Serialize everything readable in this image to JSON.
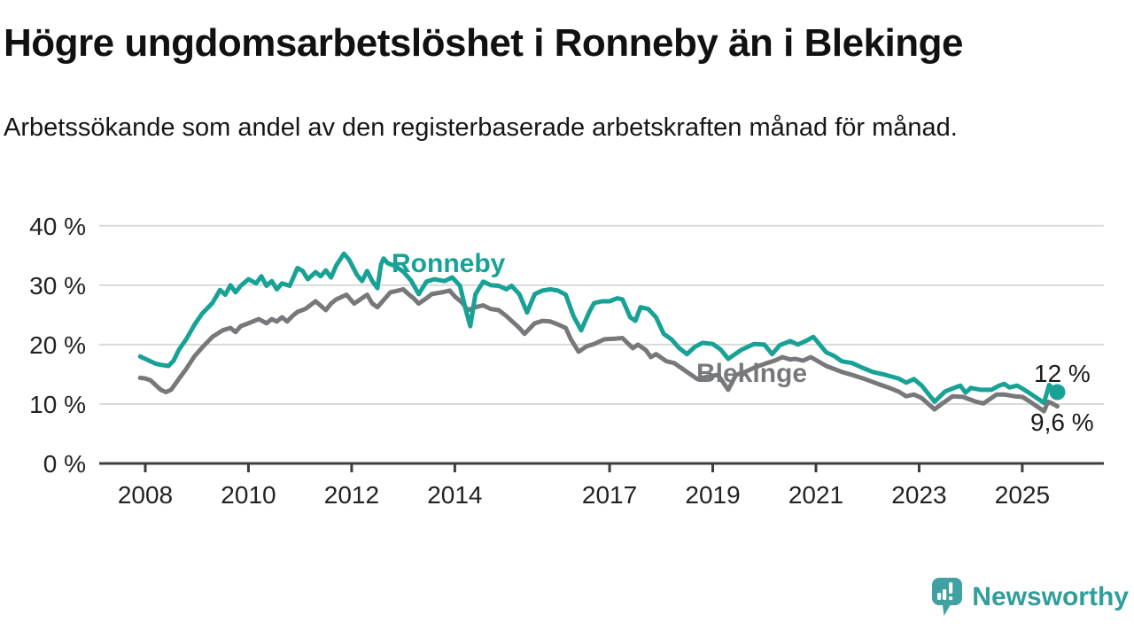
{
  "chart_data": {
    "type": "line",
    "title": "Högre ungdomsarbetslöshet i Ronneby än i Blekinge",
    "subtitle": "Arbetssökande som andel av den registerbaserade arbetskraften månad för månad.",
    "x_unit": "year (monthly series)",
    "xlim": [
      2007.1,
      2026.6
    ],
    "ylim": [
      0,
      40
    ],
    "grid": "horizontal",
    "legend_position": "inline line labels",
    "x_ticks": [
      2008,
      2010,
      2012,
      2014,
      2017,
      2019,
      2021,
      2023,
      2025
    ],
    "y_ticks": [
      0,
      10,
      20,
      30,
      40
    ],
    "y_tick_suffix": " %",
    "axis_color": "#3d3d3d",
    "gridline_color": "#dadada",
    "end_dot_series": "Ronneby",
    "series": [
      {
        "name": "Ronneby",
        "label_text": "Ronneby",
        "end_label": "12 %",
        "end_value": 12.0,
        "color": "#17a295",
        "points": [
          [
            2007.9,
            18.0
          ],
          [
            2008.0,
            17.6
          ],
          [
            2008.1,
            17.2
          ],
          [
            2008.2,
            16.8
          ],
          [
            2008.3,
            16.6
          ],
          [
            2008.45,
            16.4
          ],
          [
            2008.55,
            17.3
          ],
          [
            2008.65,
            19.1
          ],
          [
            2008.8,
            21.0
          ],
          [
            2008.95,
            23.3
          ],
          [
            2009.1,
            25.2
          ],
          [
            2009.3,
            27.0
          ],
          [
            2009.45,
            29.2
          ],
          [
            2009.55,
            28.4
          ],
          [
            2009.65,
            30.0
          ],
          [
            2009.75,
            28.8
          ],
          [
            2009.85,
            29.9
          ],
          [
            2010.0,
            31.0
          ],
          [
            2010.15,
            30.3
          ],
          [
            2010.25,
            31.5
          ],
          [
            2010.35,
            29.9
          ],
          [
            2010.45,
            30.7
          ],
          [
            2010.55,
            29.3
          ],
          [
            2010.65,
            30.3
          ],
          [
            2010.8,
            29.9
          ],
          [
            2010.95,
            32.9
          ],
          [
            2011.05,
            32.4
          ],
          [
            2011.15,
            31.0
          ],
          [
            2011.3,
            32.2
          ],
          [
            2011.4,
            31.5
          ],
          [
            2011.5,
            32.5
          ],
          [
            2011.6,
            31.3
          ],
          [
            2011.7,
            33.3
          ],
          [
            2011.85,
            35.3
          ],
          [
            2011.95,
            34.3
          ],
          [
            2012.1,
            31.8
          ],
          [
            2012.2,
            30.7
          ],
          [
            2012.3,
            32.4
          ],
          [
            2012.4,
            30.7
          ],
          [
            2012.5,
            29.5
          ],
          [
            2012.57,
            33.5
          ],
          [
            2012.62,
            34.5
          ],
          [
            2012.7,
            33.7
          ],
          [
            2012.85,
            33.2
          ],
          [
            2013.0,
            32.3
          ],
          [
            2013.15,
            30.8
          ],
          [
            2013.3,
            28.5
          ],
          [
            2013.45,
            30.6
          ],
          [
            2013.6,
            31.0
          ],
          [
            2013.8,
            30.7
          ],
          [
            2013.95,
            31.3
          ],
          [
            2014.1,
            29.9
          ],
          [
            2014.2,
            26.3
          ],
          [
            2014.3,
            23.1
          ],
          [
            2014.4,
            28.5
          ],
          [
            2014.55,
            30.6
          ],
          [
            2014.7,
            30.0
          ],
          [
            2014.85,
            29.9
          ],
          [
            2015.0,
            29.3
          ],
          [
            2015.1,
            29.9
          ],
          [
            2015.25,
            28.5
          ],
          [
            2015.4,
            25.4
          ],
          [
            2015.55,
            28.5
          ],
          [
            2015.7,
            29.1
          ],
          [
            2015.85,
            29.3
          ],
          [
            2016.0,
            29.1
          ],
          [
            2016.15,
            28.4
          ],
          [
            2016.3,
            24.8
          ],
          [
            2016.45,
            22.4
          ],
          [
            2016.6,
            25.4
          ],
          [
            2016.7,
            27.0
          ],
          [
            2016.85,
            27.3
          ],
          [
            2017.0,
            27.3
          ],
          [
            2017.15,
            27.8
          ],
          [
            2017.25,
            27.6
          ],
          [
            2017.4,
            24.6
          ],
          [
            2017.5,
            24.0
          ],
          [
            2017.6,
            26.3
          ],
          [
            2017.75,
            26.0
          ],
          [
            2017.9,
            24.6
          ],
          [
            2018.05,
            21.8
          ],
          [
            2018.2,
            20.9
          ],
          [
            2018.35,
            19.4
          ],
          [
            2018.5,
            18.4
          ],
          [
            2018.65,
            19.6
          ],
          [
            2018.8,
            20.3
          ],
          [
            2019.0,
            20.1
          ],
          [
            2019.15,
            19.2
          ],
          [
            2019.3,
            17.6
          ],
          [
            2019.55,
            19.1
          ],
          [
            2019.8,
            20.1
          ],
          [
            2020.0,
            20.0
          ],
          [
            2020.15,
            18.4
          ],
          [
            2020.3,
            19.9
          ],
          [
            2020.5,
            20.6
          ],
          [
            2020.65,
            20.0
          ],
          [
            2020.8,
            20.6
          ],
          [
            2020.95,
            21.3
          ],
          [
            2021.2,
            18.7
          ],
          [
            2021.35,
            18.1
          ],
          [
            2021.5,
            17.2
          ],
          [
            2021.7,
            16.9
          ],
          [
            2021.9,
            16.1
          ],
          [
            2022.1,
            15.4
          ],
          [
            2022.35,
            14.9
          ],
          [
            2022.6,
            14.3
          ],
          [
            2022.75,
            13.6
          ],
          [
            2022.9,
            14.2
          ],
          [
            2023.05,
            13.1
          ],
          [
            2023.3,
            10.4
          ],
          [
            2023.5,
            12.1
          ],
          [
            2023.7,
            12.8
          ],
          [
            2023.8,
            13.1
          ],
          [
            2023.9,
            11.9
          ],
          [
            2024.0,
            12.7
          ],
          [
            2024.2,
            12.4
          ],
          [
            2024.4,
            12.4
          ],
          [
            2024.55,
            13.1
          ],
          [
            2024.65,
            13.4
          ],
          [
            2024.75,
            12.8
          ],
          [
            2024.9,
            13.1
          ],
          [
            2025.0,
            12.6
          ],
          [
            2025.15,
            11.8
          ],
          [
            2025.3,
            10.9
          ],
          [
            2025.42,
            10.2
          ],
          [
            2025.52,
            13.2
          ],
          [
            2025.6,
            12.6
          ],
          [
            2025.68,
            12.0
          ]
        ]
      },
      {
        "name": "Blekinge",
        "label_text": "Blekinge",
        "end_label": "9,6 %",
        "end_value": 9.6,
        "color": "#77787c",
        "points": [
          [
            2007.9,
            14.4
          ],
          [
            2008.0,
            14.3
          ],
          [
            2008.1,
            14.0
          ],
          [
            2008.2,
            13.2
          ],
          [
            2008.3,
            12.4
          ],
          [
            2008.4,
            12.0
          ],
          [
            2008.5,
            12.4
          ],
          [
            2008.65,
            14.2
          ],
          [
            2008.8,
            16.0
          ],
          [
            2008.95,
            18.0
          ],
          [
            2009.1,
            19.5
          ],
          [
            2009.3,
            21.3
          ],
          [
            2009.5,
            22.4
          ],
          [
            2009.65,
            22.8
          ],
          [
            2009.75,
            22.1
          ],
          [
            2009.85,
            23.1
          ],
          [
            2010.0,
            23.6
          ],
          [
            2010.2,
            24.3
          ],
          [
            2010.35,
            23.6
          ],
          [
            2010.45,
            24.3
          ],
          [
            2010.55,
            23.9
          ],
          [
            2010.65,
            24.6
          ],
          [
            2010.75,
            23.9
          ],
          [
            2010.85,
            24.8
          ],
          [
            2010.95,
            25.5
          ],
          [
            2011.1,
            26.0
          ],
          [
            2011.3,
            27.3
          ],
          [
            2011.5,
            25.8
          ],
          [
            2011.6,
            26.9
          ],
          [
            2011.7,
            27.6
          ],
          [
            2011.9,
            28.4
          ],
          [
            2012.05,
            26.9
          ],
          [
            2012.2,
            27.8
          ],
          [
            2012.3,
            28.4
          ],
          [
            2012.4,
            26.9
          ],
          [
            2012.5,
            26.3
          ],
          [
            2012.65,
            27.8
          ],
          [
            2012.75,
            28.8
          ],
          [
            2012.9,
            29.1
          ],
          [
            2013.0,
            29.3
          ],
          [
            2013.1,
            28.5
          ],
          [
            2013.2,
            27.8
          ],
          [
            2013.3,
            26.9
          ],
          [
            2013.45,
            27.8
          ],
          [
            2013.55,
            28.5
          ],
          [
            2013.75,
            28.8
          ],
          [
            2013.9,
            29.1
          ],
          [
            2014.0,
            28.1
          ],
          [
            2014.15,
            27.0
          ],
          [
            2014.25,
            25.8
          ],
          [
            2014.4,
            26.3
          ],
          [
            2014.55,
            26.6
          ],
          [
            2014.7,
            26.0
          ],
          [
            2014.85,
            25.8
          ],
          [
            2015.0,
            24.8
          ],
          [
            2015.1,
            24.0
          ],
          [
            2015.25,
            22.8
          ],
          [
            2015.35,
            21.8
          ],
          [
            2015.55,
            23.6
          ],
          [
            2015.7,
            24.0
          ],
          [
            2015.85,
            23.9
          ],
          [
            2016.0,
            23.4
          ],
          [
            2016.15,
            22.8
          ],
          [
            2016.25,
            20.9
          ],
          [
            2016.4,
            18.8
          ],
          [
            2016.55,
            19.7
          ],
          [
            2016.7,
            20.1
          ],
          [
            2016.9,
            20.9
          ],
          [
            2017.1,
            21.0
          ],
          [
            2017.25,
            21.1
          ],
          [
            2017.45,
            19.4
          ],
          [
            2017.55,
            20.0
          ],
          [
            2017.7,
            19.1
          ],
          [
            2017.8,
            17.9
          ],
          [
            2017.9,
            18.4
          ],
          [
            2018.1,
            17.2
          ],
          [
            2018.25,
            16.9
          ],
          [
            2018.45,
            15.7
          ],
          [
            2018.7,
            14.2
          ],
          [
            2018.9,
            14.6
          ],
          [
            2019.1,
            14.9
          ],
          [
            2019.3,
            12.4
          ],
          [
            2019.45,
            14.9
          ],
          [
            2019.65,
            15.5
          ],
          [
            2019.8,
            16.1
          ],
          [
            2020.05,
            16.9
          ],
          [
            2020.2,
            17.3
          ],
          [
            2020.35,
            17.9
          ],
          [
            2020.5,
            17.5
          ],
          [
            2020.6,
            17.6
          ],
          [
            2020.75,
            17.3
          ],
          [
            2020.9,
            17.9
          ],
          [
            2021.2,
            16.4
          ],
          [
            2021.5,
            15.4
          ],
          [
            2021.7,
            14.9
          ],
          [
            2021.95,
            14.2
          ],
          [
            2022.2,
            13.4
          ],
          [
            2022.4,
            12.8
          ],
          [
            2022.6,
            12.1
          ],
          [
            2022.75,
            11.3
          ],
          [
            2022.9,
            11.6
          ],
          [
            2023.05,
            11.0
          ],
          [
            2023.3,
            9.1
          ],
          [
            2023.45,
            10.1
          ],
          [
            2023.65,
            11.3
          ],
          [
            2023.85,
            11.2
          ],
          [
            2024.1,
            10.4
          ],
          [
            2024.25,
            10.1
          ],
          [
            2024.5,
            11.6
          ],
          [
            2024.65,
            11.6
          ],
          [
            2024.85,
            11.3
          ],
          [
            2025.0,
            11.2
          ],
          [
            2025.15,
            10.4
          ],
          [
            2025.3,
            9.5
          ],
          [
            2025.42,
            8.8
          ],
          [
            2025.5,
            10.4
          ],
          [
            2025.58,
            10.1
          ],
          [
            2025.68,
            9.6
          ]
        ]
      }
    ]
  },
  "branding": {
    "name": "Newsworthy",
    "icon": "newsworthy-speech-bubble-chart-icon",
    "text_color": "#2f9e9c",
    "icon_color": "#3fa1a1"
  }
}
